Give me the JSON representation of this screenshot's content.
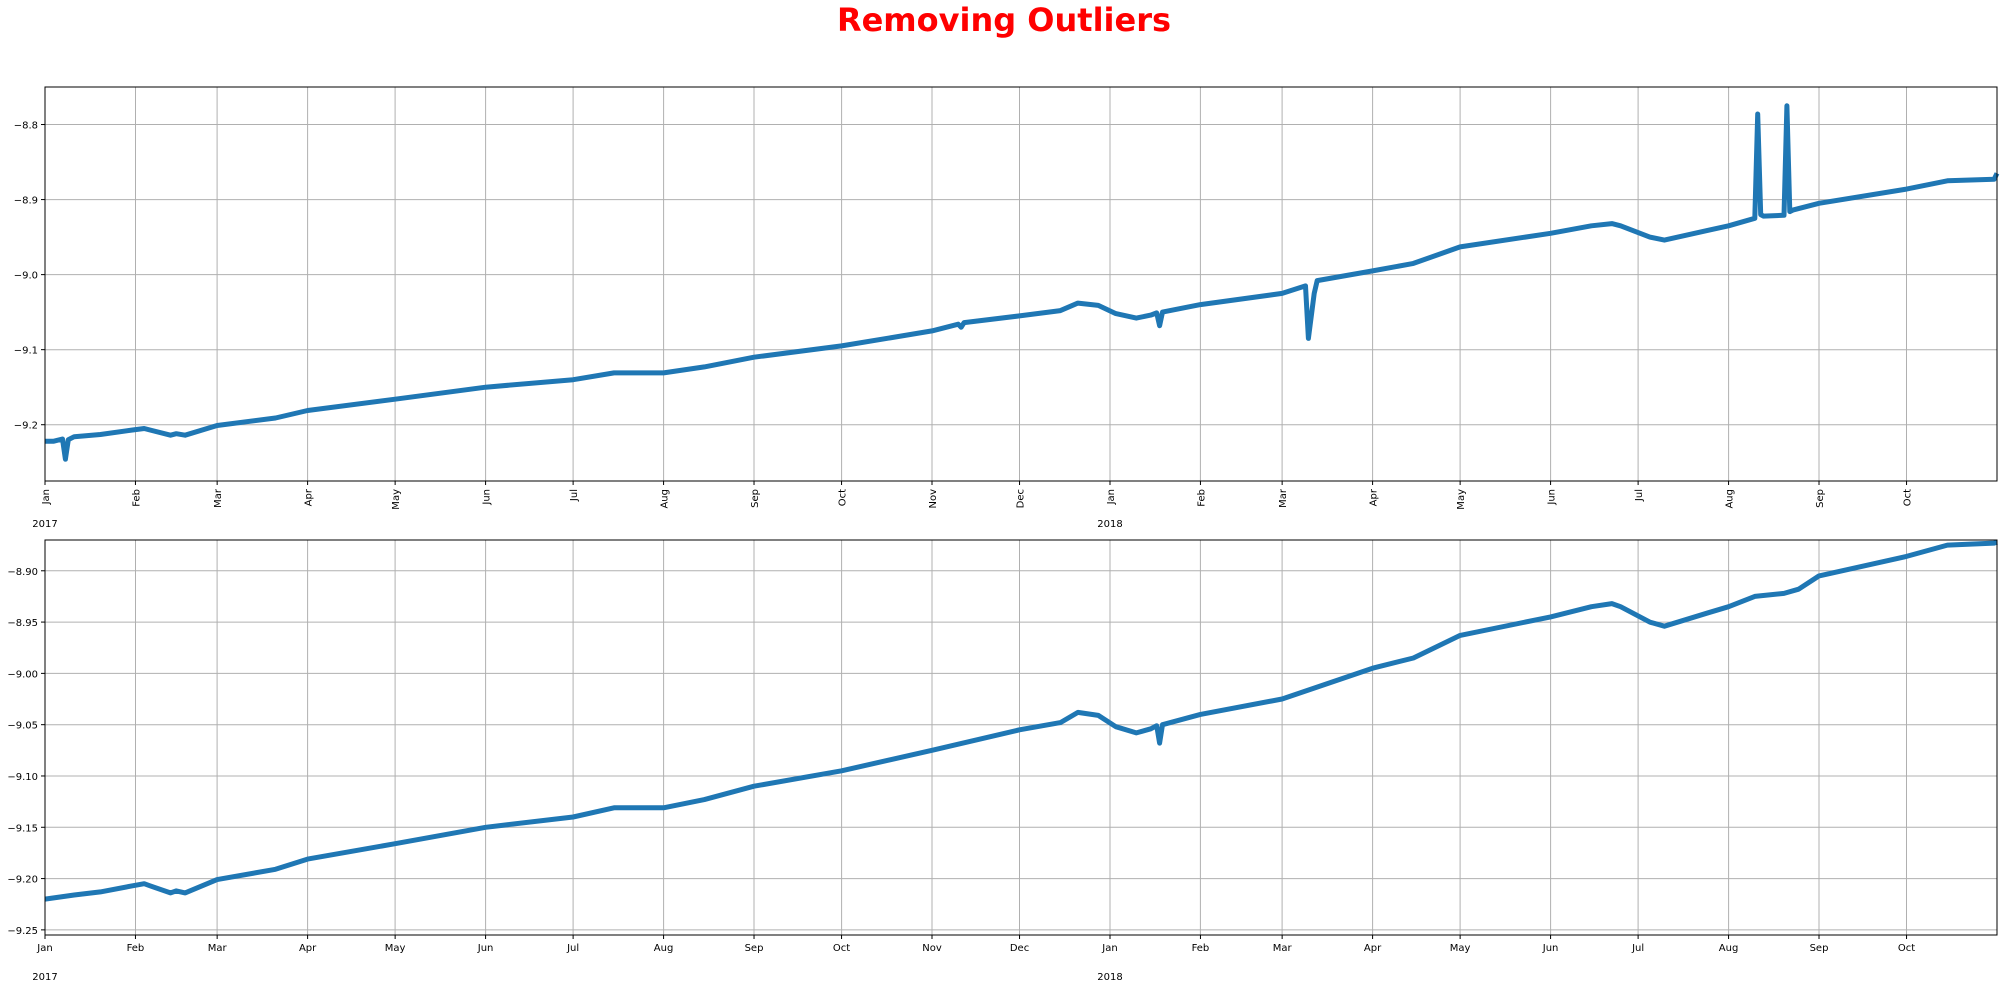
{
  "figure": {
    "title": "Removing Outliers",
    "title_color": "#ff0000",
    "line_color": "#1f77b4"
  },
  "chart_data": [
    {
      "type": "line",
      "title": "",
      "xlabel": "",
      "ylabel": "",
      "grid": true,
      "x_range": [
        "2017-01-01",
        "2018-11-01"
      ],
      "ylim": [
        -9.275,
        -8.75
      ],
      "y_ticks": [
        -9.2,
        -9.1,
        -9.0,
        -8.9,
        -8.8
      ],
      "y_tick_labels": [
        "−9.2",
        "−9.1",
        "−9.0",
        "−8.9",
        "−8.8"
      ],
      "x_ticks": [
        "2017-01-01",
        "2017-02-01",
        "2017-03-01",
        "2017-04-01",
        "2017-05-01",
        "2017-06-01",
        "2017-07-01",
        "2017-08-01",
        "2017-09-01",
        "2017-10-01",
        "2017-11-01",
        "2017-12-01",
        "2018-01-01",
        "2018-02-01",
        "2018-03-01",
        "2018-04-01",
        "2018-05-01",
        "2018-06-01",
        "2018-07-01",
        "2018-08-01",
        "2018-09-01",
        "2018-10-01"
      ],
      "x_tick_labels": [
        "Jan",
        "Feb",
        "Mar",
        "Apr",
        "May",
        "Jun",
        "Jul",
        "Aug",
        "Sep",
        "Oct",
        "Nov",
        "Dec",
        "Jan",
        "Feb",
        "Mar",
        "Apr",
        "May",
        "Jun",
        "Jul",
        "Aug",
        "Sep",
        "Oct"
      ],
      "x_tick_rotation": "vertical",
      "year_labels": [
        {
          "date": "2017-01-01",
          "label": "2017"
        },
        {
          "date": "2018-01-01",
          "label": "2018"
        }
      ],
      "series": [
        {
          "x": [
            "2017-01-01",
            "2017-01-04",
            "2017-01-07",
            "2017-01-08",
            "2017-01-09",
            "2017-01-11",
            "2017-01-20",
            "2017-01-31",
            "2017-02-04",
            "2017-02-06",
            "2017-02-13",
            "2017-02-15",
            "2017-02-18",
            "2017-03-01",
            "2017-03-21",
            "2017-04-01",
            "2017-05-01",
            "2017-06-01",
            "2017-07-01",
            "2017-07-15",
            "2017-08-01",
            "2017-08-15",
            "2017-09-01",
            "2017-10-01",
            "2017-11-01",
            "2017-11-10",
            "2017-11-11",
            "2017-11-12",
            "2017-12-01",
            "2017-12-15",
            "2017-12-21",
            "2017-12-28",
            "2018-01-03",
            "2018-01-10",
            "2018-01-15",
            "2018-01-17",
            "2018-01-18",
            "2018-01-19",
            "2018-02-01",
            "2018-03-01",
            "2018-03-09",
            "2018-03-10",
            "2018-03-12",
            "2018-03-13",
            "2018-04-01",
            "2018-04-15",
            "2018-05-01",
            "2018-06-01",
            "2018-06-15",
            "2018-06-22",
            "2018-06-25",
            "2018-07-05",
            "2018-07-10",
            "2018-07-25",
            "2018-08-01",
            "2018-08-10",
            "2018-08-11",
            "2018-08-12",
            "2018-08-13",
            "2018-08-20",
            "2018-08-21",
            "2018-08-22",
            "2018-08-23",
            "2018-08-25",
            "2018-09-01",
            "2018-10-01",
            "2018-10-15",
            "2018-10-31",
            "2018-11-01"
          ],
          "y": [
            -9.222,
            -9.222,
            -9.219,
            -9.246,
            -9.22,
            -9.216,
            -9.213,
            -9.207,
            -9.205,
            -9.207,
            -9.214,
            -9.212,
            -9.214,
            -9.201,
            -9.191,
            -9.181,
            -9.166,
            -9.15,
            -9.14,
            -9.131,
            -9.131,
            -9.123,
            -9.11,
            -9.095,
            -9.075,
            -9.066,
            -9.07,
            -9.064,
            -9.055,
            -9.048,
            -9.038,
            -9.041,
            -9.052,
            -9.058,
            -9.054,
            -9.051,
            -9.068,
            -9.05,
            -9.04,
            -9.025,
            -9.015,
            -9.085,
            -9.025,
            -9.008,
            -8.995,
            -8.985,
            -8.963,
            -8.945,
            -8.935,
            -8.932,
            -8.935,
            -8.95,
            -8.954,
            -8.941,
            -8.935,
            -8.925,
            -8.786,
            -8.92,
            -8.922,
            -8.921,
            -8.775,
            -8.916,
            -8.914,
            -8.912,
            -8.905,
            -8.886,
            -8.875,
            -8.873,
            -8.865
          ]
        }
      ]
    },
    {
      "type": "line",
      "title": "",
      "xlabel": "",
      "ylabel": "",
      "grid": true,
      "x_range": [
        "2017-01-01",
        "2018-11-01"
      ],
      "ylim": [
        -9.255,
        -8.87
      ],
      "y_ticks": [
        -9.25,
        -9.2,
        -9.15,
        -9.1,
        -9.05,
        -9.0,
        -8.95,
        -8.9
      ],
      "y_tick_labels": [
        "−9.25",
        "−9.20",
        "−9.15",
        "−9.10",
        "−9.05",
        "−9.00",
        "−8.95",
        "−8.90"
      ],
      "x_ticks": [
        "2017-01-01",
        "2017-02-01",
        "2017-03-01",
        "2017-04-01",
        "2017-05-01",
        "2017-06-01",
        "2017-07-01",
        "2017-08-01",
        "2017-09-01",
        "2017-10-01",
        "2017-11-01",
        "2017-12-01",
        "2018-01-01",
        "2018-02-01",
        "2018-03-01",
        "2018-04-01",
        "2018-05-01",
        "2018-06-01",
        "2018-07-01",
        "2018-08-01",
        "2018-09-01",
        "2018-10-01"
      ],
      "x_tick_labels": [
        "Jan",
        "Feb",
        "Mar",
        "Apr",
        "May",
        "Jun",
        "Jul",
        "Aug",
        "Sep",
        "Oct",
        "Nov",
        "Dec",
        "Jan",
        "Feb",
        "Mar",
        "Apr",
        "May",
        "Jun",
        "Jul",
        "Aug",
        "Sep",
        "Oct"
      ],
      "x_tick_rotation": "horizontal",
      "year_labels": [
        {
          "date": "2017-01-01",
          "label": "2017"
        },
        {
          "date": "2018-01-01",
          "label": "2018"
        }
      ],
      "series": [
        {
          "x": [
            "2017-01-01",
            "2017-01-11",
            "2017-01-20",
            "2017-01-31",
            "2017-02-04",
            "2017-02-06",
            "2017-02-13",
            "2017-02-15",
            "2017-02-18",
            "2017-03-01",
            "2017-03-21",
            "2017-04-01",
            "2017-05-01",
            "2017-06-01",
            "2017-07-01",
            "2017-07-15",
            "2017-08-01",
            "2017-08-15",
            "2017-09-01",
            "2017-10-01",
            "2017-11-01",
            "2017-12-01",
            "2017-12-15",
            "2017-12-21",
            "2017-12-28",
            "2018-01-03",
            "2018-01-10",
            "2018-01-15",
            "2018-01-17",
            "2018-01-18",
            "2018-01-19",
            "2018-02-01",
            "2018-03-01",
            "2018-04-01",
            "2018-04-15",
            "2018-05-01",
            "2018-06-01",
            "2018-06-15",
            "2018-06-22",
            "2018-06-25",
            "2018-07-05",
            "2018-07-10",
            "2018-07-25",
            "2018-08-01",
            "2018-08-10",
            "2018-08-20",
            "2018-08-25",
            "2018-09-01",
            "2018-10-01",
            "2018-10-15",
            "2018-10-31",
            "2018-11-01"
          ],
          "y": [
            -9.22,
            -9.216,
            -9.213,
            -9.207,
            -9.205,
            -9.207,
            -9.214,
            -9.212,
            -9.214,
            -9.201,
            -9.191,
            -9.181,
            -9.166,
            -9.15,
            -9.14,
            -9.131,
            -9.131,
            -9.123,
            -9.11,
            -9.095,
            -9.075,
            -9.055,
            -9.048,
            -9.038,
            -9.041,
            -9.052,
            -9.058,
            -9.054,
            -9.051,
            -9.068,
            -9.05,
            -9.04,
            -9.025,
            -8.995,
            -8.985,
            -8.963,
            -8.945,
            -8.935,
            -8.932,
            -8.935,
            -8.95,
            -8.954,
            -8.941,
            -8.935,
            -8.925,
            -8.922,
            -8.918,
            -8.905,
            -8.886,
            -8.875,
            -8.873,
            -8.872
          ]
        }
      ]
    }
  ]
}
